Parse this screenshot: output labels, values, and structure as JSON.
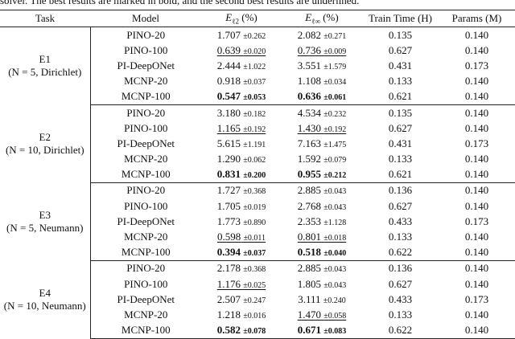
{
  "caption": "solver. The best results are marked in bold, and the second best results are underlined.",
  "table": {
    "header": {
      "task": "Task",
      "model": "Model",
      "e_l2": {
        "symbol": "E",
        "subscript": "ℓ2",
        "unit": "(%)"
      },
      "e_linf": {
        "symbol": "E",
        "subscript": "ℓ∞",
        "unit": "(%)"
      },
      "time": "Train Time (H)",
      "params": "Params (M)"
    },
    "groups": [
      {
        "task": "E1",
        "condition": "(N = 5, Dirichlet)",
        "rows": [
          {
            "model": "PINO-20",
            "e_l2": {
              "mean": "1.707",
              "std": "±0.262"
            },
            "e_linf": {
              "mean": "2.082",
              "std": "±0.271"
            },
            "time": "0.135",
            "params": "0.140"
          },
          {
            "model": "PINO-100",
            "e_l2": {
              "mean": "0.639",
              "std": "±0.020",
              "style": "underline"
            },
            "e_linf": {
              "mean": "0.736",
              "std": "±0.009",
              "style": "underline"
            },
            "time": "0.627",
            "params": "0.140"
          },
          {
            "model": "PI-DeepONet",
            "e_l2": {
              "mean": "2.444",
              "std": "±1.022"
            },
            "e_linf": {
              "mean": "3.551",
              "std": "±1.579"
            },
            "time": "0.431",
            "params": "0.173"
          },
          {
            "model": "MCNP-20",
            "e_l2": {
              "mean": "0.918",
              "std": "±0.037"
            },
            "e_linf": {
              "mean": "1.108",
              "std": "±0.034"
            },
            "time": "0.133",
            "params": "0.140"
          },
          {
            "model": "MCNP-100",
            "e_l2": {
              "mean": "0.547",
              "std": "±0.053",
              "style": "bold"
            },
            "e_linf": {
              "mean": "0.636",
              "std": "±0.061",
              "style": "bold"
            },
            "time": "0.621",
            "params": "0.140"
          }
        ]
      },
      {
        "task": "E2",
        "condition": "(N = 10, Dirichlet)",
        "rows": [
          {
            "model": "PINO-20",
            "e_l2": {
              "mean": "3.180",
              "std": "±0.182"
            },
            "e_linf": {
              "mean": "4.534",
              "std": "±0.232"
            },
            "time": "0.135",
            "params": "0.140"
          },
          {
            "model": "PINO-100",
            "e_l2": {
              "mean": "1.165",
              "std": "±0.192",
              "style": "underline"
            },
            "e_linf": {
              "mean": "1.430",
              "std": "±0.192",
              "style": "underline"
            },
            "time": "0.627",
            "params": "0.140"
          },
          {
            "model": "PI-DeepONet",
            "e_l2": {
              "mean": "5.615",
              "std": "±1.191"
            },
            "e_linf": {
              "mean": "7.163",
              "std": "±1.475"
            },
            "time": "0.431",
            "params": "0.173"
          },
          {
            "model": "MCNP-20",
            "e_l2": {
              "mean": "1.290",
              "std": "±0.062"
            },
            "e_linf": {
              "mean": "1.592",
              "std": "±0.079"
            },
            "time": "0.133",
            "params": "0.140"
          },
          {
            "model": "MCNP-100",
            "e_l2": {
              "mean": "0.831",
              "std": "±0.200",
              "style": "bold"
            },
            "e_linf": {
              "mean": "0.955",
              "std": "±0.212",
              "style": "bold"
            },
            "time": "0.621",
            "params": "0.140"
          }
        ]
      },
      {
        "task": "E3",
        "condition": "(N = 5, Neumann)",
        "rows": [
          {
            "model": "PINO-20",
            "e_l2": {
              "mean": "1.727",
              "std": "±0.368"
            },
            "e_linf": {
              "mean": "2.885",
              "std": "±0.043"
            },
            "time": "0.136",
            "params": "0.140"
          },
          {
            "model": "PINO-100",
            "e_l2": {
              "mean": "1.705",
              "std": "±0.019"
            },
            "e_linf": {
              "mean": "2.768",
              "std": "±0.043"
            },
            "time": "0.627",
            "params": "0.140"
          },
          {
            "model": "PI-DeepONet",
            "e_l2": {
              "mean": "1.773",
              "std": "±0.890"
            },
            "e_linf": {
              "mean": "2.353",
              "std": "±1.128"
            },
            "time": "0.433",
            "params": "0.173"
          },
          {
            "model": "MCNP-20",
            "e_l2": {
              "mean": "0.598",
              "std": "±0.011",
              "style": "underline"
            },
            "e_linf": {
              "mean": "0.801",
              "std": "±0.018",
              "style": "underline"
            },
            "time": "0.133",
            "params": "0.140"
          },
          {
            "model": "MCNP-100",
            "e_l2": {
              "mean": "0.394",
              "std": "±0.037",
              "style": "bold"
            },
            "e_linf": {
              "mean": "0.518",
              "std": "±0.040",
              "style": "bold"
            },
            "time": "0.622",
            "params": "0.140"
          }
        ]
      },
      {
        "task": "E4",
        "condition": "(N = 10, Neumann)",
        "rows": [
          {
            "model": "PINO-20",
            "e_l2": {
              "mean": "2.178",
              "std": "±0.368"
            },
            "e_linf": {
              "mean": "2.885",
              "std": "±0.043"
            },
            "time": "0.136",
            "params": "0.140"
          },
          {
            "model": "PINO-100",
            "e_l2": {
              "mean": "1.176",
              "std": "±0.025",
              "style": "underline"
            },
            "e_linf": {
              "mean": "1.805",
              "std": "±0.043"
            },
            "time": "0.627",
            "params": "0.140"
          },
          {
            "model": "PI-DeepONet",
            "e_l2": {
              "mean": "2.507",
              "std": "±0.247"
            },
            "e_linf": {
              "mean": "3.111",
              "std": "±0.240"
            },
            "time": "0.433",
            "params": "0.173"
          },
          {
            "model": "MCNP-20",
            "e_l2": {
              "mean": "1.218",
              "std": "±0.016"
            },
            "e_linf": {
              "mean": "1.470",
              "std": "±0.058",
              "style": "underline"
            },
            "time": "0.133",
            "params": "0.140"
          },
          {
            "model": "MCNP-100",
            "e_l2": {
              "mean": "0.582",
              "std": "±0.078",
              "style": "bold"
            },
            "e_linf": {
              "mean": "0.671",
              "std": "±0.083",
              "style": "bold"
            },
            "time": "0.622",
            "params": "0.140"
          }
        ]
      }
    ]
  }
}
